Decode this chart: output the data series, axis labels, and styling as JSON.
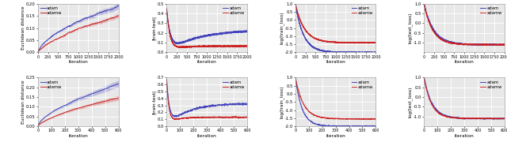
{
  "row1": {
    "plot1": {
      "ylabel": "Euclidean distance",
      "xlabel": "iteration",
      "xlim": [
        0,
        2000
      ],
      "ylim": [
        0,
        0.2
      ],
      "yticks": [
        0.0,
        0.05,
        0.1,
        0.15,
        0.2
      ],
      "xticks": [
        0,
        250,
        500,
        750,
        1000,
        1250,
        1500,
        1750,
        2000
      ],
      "adam_color": "#4444bb",
      "adamw_color": "#cc2222",
      "n_iter": 2000,
      "adam_final": 0.19,
      "adamw_final": 0.145,
      "adam_std_end": 0.012,
      "adamw_std_end": 0.008
    },
    "plot2": {
      "ylabel": "|train-test|",
      "xlabel": "iteration",
      "xlim": [
        0,
        2000
      ],
      "ylim": [
        0,
        0.5
      ],
      "yticks": [
        0.0,
        0.1,
        0.2,
        0.3,
        0.4,
        0.5
      ],
      "xticks": [
        0,
        250,
        500,
        750,
        1000,
        1250,
        1500,
        1750,
        2000
      ],
      "adam_color": "#4444bb",
      "adamw_color": "#cc2222",
      "n_iter": 2000,
      "adam_spike": 0.45,
      "adam_rise": 0.23,
      "adam_rise_rate": 3.0,
      "adamw_spike": 0.45,
      "adamw_stable": 0.065,
      "adamw_rate": 15.0,
      "adam_std_end": 0.015,
      "adamw_std_end": 0.008
    },
    "plot3": {
      "ylabel": "log(train_loss)",
      "xlabel": "iteration",
      "xlim": [
        0,
        2000
      ],
      "ylim": [
        -2.0,
        1.0
      ],
      "yticks": [
        -2.0,
        -1.5,
        -1.0,
        -0.5,
        0.0,
        0.5,
        1.0
      ],
      "xticks": [
        0,
        250,
        500,
        750,
        1000,
        1250,
        1500,
        1750,
        2000
      ],
      "adam_color": "#4444bb",
      "adamw_color": "#cc2222",
      "n_iter": 2000,
      "adam_final": -2.0,
      "adamw_final": -1.4,
      "adam_std_end": 0.03,
      "adamw_std_end": 0.03
    },
    "plot4": {
      "ylabel": "log(test_loss)",
      "xlabel": "iteration",
      "xlim": [
        0,
        2000
      ],
      "ylim": [
        -1.5,
        1.0
      ],
      "yticks": [
        -1.0,
        -0.5,
        0.0,
        0.5,
        1.0
      ],
      "xticks": [
        0,
        250,
        500,
        750,
        1000,
        1250,
        1500,
        1750,
        2000
      ],
      "adam_color": "#4444bb",
      "adamw_color": "#cc2222",
      "n_iter": 2000,
      "adam_final": -1.1,
      "adamw_final": -1.1,
      "adam_std_end": 0.03,
      "adamw_std_end": 0.03
    }
  },
  "row2": {
    "plot1": {
      "ylabel": "Euclidean distance",
      "xlabel": "iteration",
      "xlim": [
        0,
        600
      ],
      "ylim": [
        0,
        0.25
      ],
      "yticks": [
        0.0,
        0.05,
        0.1,
        0.15,
        0.2,
        0.25
      ],
      "xticks": [
        0,
        100,
        200,
        300,
        400,
        500,
        600
      ],
      "adam_color": "#4444bb",
      "adamw_color": "#cc2222",
      "n_iter": 600,
      "adam_final": 0.215,
      "adamw_final": 0.148,
      "adam_std_end": 0.018,
      "adamw_std_end": 0.012
    },
    "plot2": {
      "ylabel": "|train-test|",
      "xlabel": "iteration",
      "xlim": [
        0,
        600
      ],
      "ylim": [
        0,
        0.7
      ],
      "yticks": [
        0.0,
        0.1,
        0.2,
        0.3,
        0.4,
        0.5,
        0.6,
        0.7
      ],
      "xticks": [
        0,
        100,
        200,
        300,
        400,
        500,
        600
      ],
      "adam_color": "#4444bb",
      "adamw_color": "#cc2222",
      "n_iter": 600,
      "adam_spike": 0.68,
      "adam_rise": 0.33,
      "adam_rise_rate": 4.0,
      "adamw_spike": 0.65,
      "adamw_stable": 0.13,
      "adamw_rate": 20.0,
      "adam_std_end": 0.025,
      "adamw_std_end": 0.012
    },
    "plot3": {
      "ylabel": "log(train_loss)",
      "xlabel": "iteration",
      "xlim": [
        0,
        600
      ],
      "ylim": [
        -2.0,
        1.0
      ],
      "yticks": [
        -2.0,
        -1.5,
        -1.0,
        -0.5,
        0.0,
        0.5,
        1.0
      ],
      "xticks": [
        0,
        100,
        200,
        300,
        400,
        500,
        600
      ],
      "adam_color": "#4444bb",
      "adamw_color": "#cc2222",
      "n_iter": 600,
      "adam_final": -2.0,
      "adamw_final": -1.55,
      "adam_std_end": 0.04,
      "adamw_std_end": 0.04
    },
    "plot4": {
      "ylabel": "log(test_loss)",
      "xlabel": "iteration",
      "xlim": [
        0,
        600
      ],
      "ylim": [
        -1.5,
        1.0
      ],
      "yticks": [
        -1.0,
        -0.5,
        0.0,
        0.5,
        1.0
      ],
      "xticks": [
        0,
        100,
        200,
        300,
        400,
        500,
        600
      ],
      "adam_color": "#4444bb",
      "adamw_color": "#cc2222",
      "n_iter": 600,
      "adam_final": -1.1,
      "adamw_final": -1.1,
      "adam_std_end": 0.04,
      "adamw_std_end": 0.04
    }
  },
  "background_color": "#e8e8e8",
  "grid_color": "white"
}
